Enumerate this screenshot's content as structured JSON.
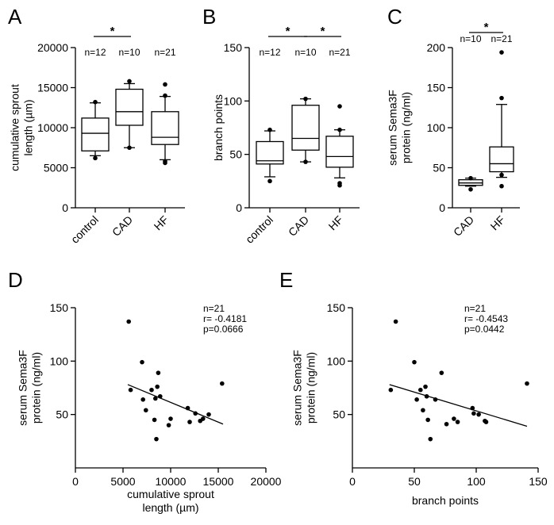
{
  "chart_data": [
    {
      "panel": "A",
      "type": "box",
      "ylabel": [
        "cumulative sprout",
        "length (µm)"
      ],
      "ylim": [
        0,
        20000
      ],
      "yticks": [
        0,
        5000,
        10000,
        15000,
        20000
      ],
      "categories": [
        "control",
        "CAD",
        "HF"
      ],
      "n_labels": [
        "n=12",
        "n=10",
        "n=21"
      ],
      "boxes": [
        {
          "whisker_low": 6500,
          "q1": 7100,
          "median": 9300,
          "q3": 11200,
          "whisker_high": 13100,
          "outliers": [
            6200,
            13200
          ]
        },
        {
          "whisker_low": 7500,
          "q1": 10300,
          "median": 12000,
          "q3": 14800,
          "whisker_high": 15500,
          "outliers": [
            7500,
            15800
          ]
        },
        {
          "whisker_low": 6000,
          "q1": 7900,
          "median": 8800,
          "q3": 12000,
          "whisker_high": 13900,
          "outliers": [
            5600,
            5800,
            14000,
            15400
          ]
        }
      ],
      "significance": [
        {
          "from": 0,
          "to": 1,
          "label": "*"
        }
      ]
    },
    {
      "panel": "B",
      "type": "box",
      "ylabel": [
        "branch points"
      ],
      "ylim": [
        0,
        150
      ],
      "yticks": [
        0,
        50,
        100,
        150
      ],
      "categories": [
        "control",
        "CAD",
        "HF"
      ],
      "n_labels": [
        "n=12",
        "n=10",
        "n=21"
      ],
      "boxes": [
        {
          "whisker_low": 29,
          "q1": 41,
          "median": 44,
          "q3": 62,
          "whisker_high": 72,
          "outliers": [
            25,
            73
          ]
        },
        {
          "whisker_low": 43,
          "q1": 54,
          "median": 65,
          "q3": 96,
          "whisker_high": 102,
          "outliers": [
            43,
            102
          ]
        },
        {
          "whisker_low": 28,
          "q1": 38,
          "median": 48,
          "q3": 67,
          "whisker_high": 73,
          "outliers": [
            21,
            23,
            73,
            95
          ]
        }
      ],
      "significance": [
        {
          "from": 0,
          "to": 1,
          "label": "*"
        },
        {
          "from": 1,
          "to": 2,
          "label": "*"
        }
      ]
    },
    {
      "panel": "C",
      "type": "box",
      "ylabel": [
        "serum Sema3F",
        "protein (ng/ml)"
      ],
      "ylim": [
        0,
        200
      ],
      "yticks": [
        0,
        50,
        100,
        150,
        200
      ],
      "categories": [
        "CAD",
        "HF"
      ],
      "n_labels": [
        "n=10",
        "n=21"
      ],
      "boxes": [
        {
          "whisker_low": 27,
          "q1": 28,
          "median": 31,
          "q3": 35,
          "whisker_high": 37,
          "outliers": [
            23,
            37
          ]
        },
        {
          "whisker_low": 38,
          "q1": 45,
          "median": 55,
          "q3": 76,
          "whisker_high": 129,
          "outliers": [
            27,
            41,
            137,
            194
          ]
        }
      ],
      "significance": [
        {
          "from": 0,
          "to": 1,
          "label": "*"
        }
      ]
    },
    {
      "panel": "D",
      "type": "scatter",
      "xlabel": [
        "cumulative sprout",
        "length (µm)"
      ],
      "ylabel": [
        "serum Sema3F",
        "protein (ng/ml)"
      ],
      "xlim": [
        0,
        20000
      ],
      "ylim": [
        0,
        150
      ],
      "xticks": [
        0,
        5000,
        10000,
        15000,
        20000
      ],
      "yticks": [
        50,
        100,
        150
      ],
      "stats": [
        "n=21",
        "r= -0.4181",
        "p=0.0666"
      ],
      "points": [
        [
          5600,
          137
        ],
        [
          5800,
          73
        ],
        [
          7000,
          99
        ],
        [
          7100,
          64
        ],
        [
          7400,
          54
        ],
        [
          8000,
          73
        ],
        [
          8300,
          45
        ],
        [
          8400,
          65
        ],
        [
          8500,
          27
        ],
        [
          8600,
          76
        ],
        [
          8700,
          89
        ],
        [
          8900,
          67
        ],
        [
          9800,
          40
        ],
        [
          10000,
          46
        ],
        [
          11800,
          56
        ],
        [
          12000,
          43
        ],
        [
          12600,
          51
        ],
        [
          13100,
          44
        ],
        [
          14000,
          50
        ],
        [
          15400,
          79
        ],
        [
          13400,
          46
        ]
      ],
      "fit": {
        "x": [
          5500,
          15500
        ],
        "y": [
          78,
          41
        ]
      }
    },
    {
      "panel": "E",
      "type": "scatter",
      "xlabel": [
        "branch points"
      ],
      "ylabel": [
        "serum Sema3F",
        "protein (ng/ml)"
      ],
      "xlim": [
        0,
        150
      ],
      "ylim": [
        0,
        150
      ],
      "xticks": [
        0,
        50,
        100,
        150
      ],
      "yticks": [
        50,
        100,
        150
      ],
      "stats": [
        "n=21",
        "r= -0.4543",
        "p=0.0442"
      ],
      "points": [
        [
          31,
          73
        ],
        [
          35,
          137
        ],
        [
          50,
          99
        ],
        [
          52,
          64
        ],
        [
          57,
          54
        ],
        [
          59,
          76
        ],
        [
          60,
          67
        ],
        [
          61,
          45
        ],
        [
          63,
          27
        ],
        [
          67,
          64
        ],
        [
          72,
          89
        ],
        [
          76,
          41
        ],
        [
          82,
          46
        ],
        [
          85,
          43
        ],
        [
          97,
          56
        ],
        [
          98,
          51
        ],
        [
          102,
          50
        ],
        [
          107,
          44
        ],
        [
          108,
          43
        ],
        [
          141,
          79
        ],
        [
          55,
          73
        ]
      ],
      "fit": {
        "x": [
          30,
          141
        ],
        "y": [
          78,
          39
        ]
      }
    }
  ]
}
